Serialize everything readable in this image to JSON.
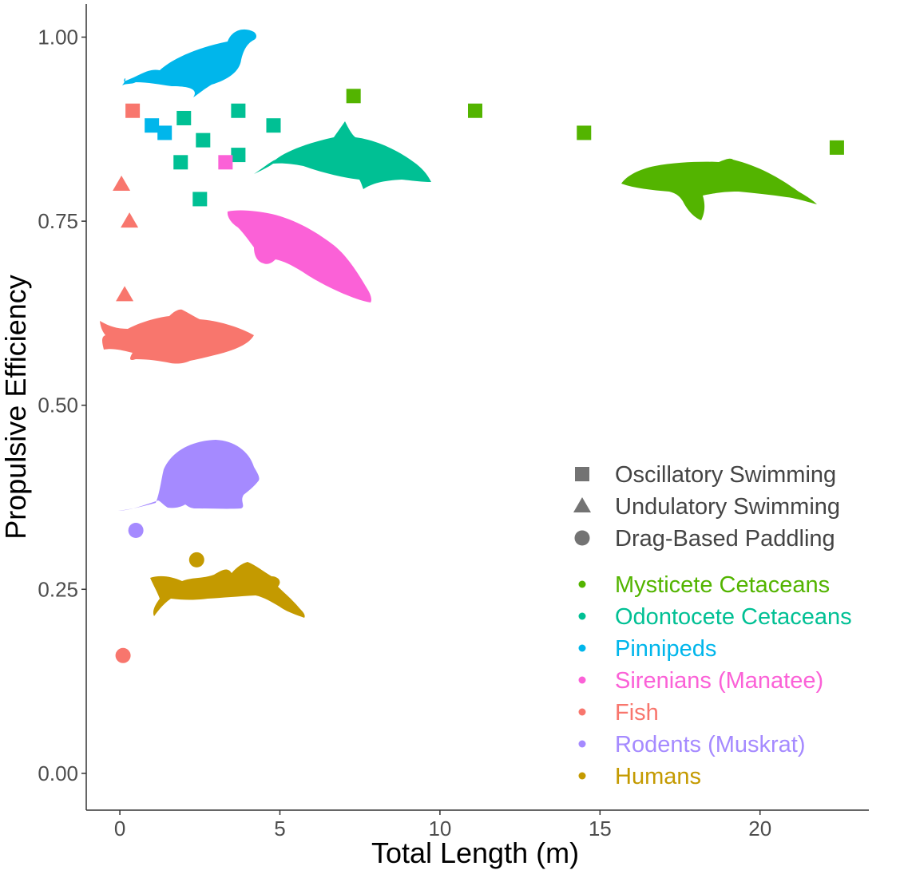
{
  "chart_data": {
    "type": "scatter",
    "xlabel": "Total Length (m)",
    "ylabel": "Propulsive Efficiency",
    "xlim": [
      -1.05,
      23.4
    ],
    "ylim": [
      -0.05,
      1.045
    ],
    "x_ticks": [
      0,
      5,
      10,
      15,
      20
    ],
    "y_ticks": [
      0.0,
      0.25,
      0.5,
      0.75,
      1.0
    ],
    "x_tick_labels": [
      "0",
      "5",
      "10",
      "15",
      "20"
    ],
    "y_tick_labels": [
      "0.00",
      "0.25",
      "0.50",
      "0.75",
      "1.00"
    ],
    "grid": false,
    "legend_position": "right",
    "shape_legend": [
      {
        "shape": "square",
        "label": "Oscillatory Swimming"
      },
      {
        "shape": "triangle",
        "label": "Undulatory Swimming"
      },
      {
        "shape": "circle",
        "label": "Drag-Based Paddling"
      }
    ],
    "series": [
      {
        "name": "Mysticete Cetaceans",
        "color": "#53B400",
        "silhouette": "humpback-whale-silhouette",
        "points": [
          {
            "x": 7.3,
            "y": 0.92,
            "shape": "square"
          },
          {
            "x": 11.1,
            "y": 0.9,
            "shape": "square"
          },
          {
            "x": 14.5,
            "y": 0.87,
            "shape": "square"
          },
          {
            "x": 22.4,
            "y": 0.85,
            "shape": "square"
          }
        ]
      },
      {
        "name": "Odontocete Cetaceans",
        "color": "#00C094",
        "silhouette": "dolphin-silhouette",
        "points": [
          {
            "x": 2.0,
            "y": 0.89,
            "shape": "square"
          },
          {
            "x": 3.7,
            "y": 0.9,
            "shape": "square"
          },
          {
            "x": 4.8,
            "y": 0.88,
            "shape": "square"
          },
          {
            "x": 2.6,
            "y": 0.86,
            "shape": "square"
          },
          {
            "x": 3.7,
            "y": 0.84,
            "shape": "square"
          },
          {
            "x": 1.9,
            "y": 0.83,
            "shape": "square"
          },
          {
            "x": 2.5,
            "y": 0.78,
            "shape": "square"
          }
        ]
      },
      {
        "name": "Pinnipeds",
        "color": "#00B6EB",
        "silhouette": "seal-silhouette",
        "points": [
          {
            "x": 1.0,
            "y": 0.88,
            "shape": "square"
          },
          {
            "x": 1.4,
            "y": 0.87,
            "shape": "square"
          }
        ]
      },
      {
        "name": "Sirenians (Manatee)",
        "color": "#FB61D7",
        "silhouette": "manatee-silhouette",
        "points": [
          {
            "x": 3.3,
            "y": 0.83,
            "shape": "square"
          }
        ]
      },
      {
        "name": "Fish",
        "color": "#F8766D",
        "silhouette": "fish-silhouette",
        "points": [
          {
            "x": 0.4,
            "y": 0.9,
            "shape": "square"
          },
          {
            "x": 0.05,
            "y": 0.8,
            "shape": "triangle"
          },
          {
            "x": 0.3,
            "y": 0.75,
            "shape": "triangle"
          },
          {
            "x": 0.15,
            "y": 0.65,
            "shape": "triangle"
          },
          {
            "x": 0.1,
            "y": 0.16,
            "shape": "circle"
          }
        ]
      },
      {
        "name": "Rodents (Muskrat)",
        "color": "#A58AFF",
        "silhouette": "muskrat-silhouette",
        "points": [
          {
            "x": 0.5,
            "y": 0.33,
            "shape": "circle"
          }
        ]
      },
      {
        "name": "Humans",
        "color": "#C49A00",
        "silhouette": "swimmer-silhouette",
        "points": [
          {
            "x": 2.4,
            "y": 0.29,
            "shape": "circle"
          }
        ]
      }
    ]
  }
}
